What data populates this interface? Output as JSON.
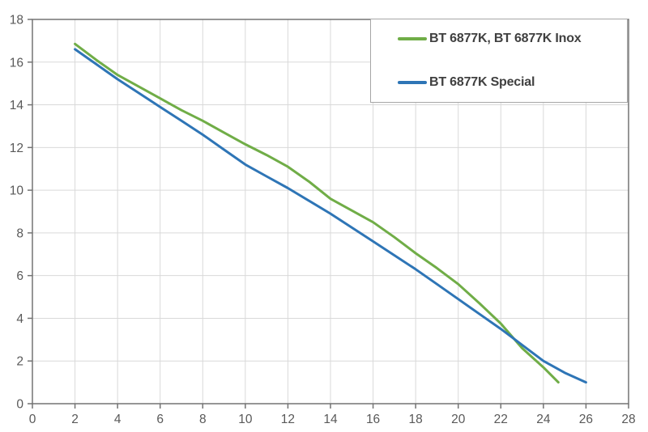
{
  "chart_data": {
    "type": "line",
    "title": "",
    "xlabel": "",
    "ylabel": "",
    "xlim": [
      0,
      28
    ],
    "ylim": [
      0,
      18
    ],
    "x_tick_step": 2,
    "y_tick_step": 2,
    "grid": true,
    "legend_position": "top-right",
    "colors": {
      "axis": "#737373",
      "grid": "#D9D9D9",
      "tick_label": "#595959",
      "legend_border": "#A6A6A6",
      "legend_text": "#404040"
    },
    "series": [
      {
        "name": "BT 6877K, BT 6877K Inox",
        "color": "#70AD47",
        "points": [
          [
            2,
            16.85
          ],
          [
            3,
            16.1
          ],
          [
            4,
            15.4
          ],
          [
            5,
            14.85
          ],
          [
            6,
            14.3
          ],
          [
            7,
            13.75
          ],
          [
            8,
            13.25
          ],
          [
            9,
            12.7
          ],
          [
            10,
            12.15
          ],
          [
            11,
            11.65
          ],
          [
            12,
            11.1
          ],
          [
            13,
            10.4
          ],
          [
            14,
            9.6
          ],
          [
            15,
            9.05
          ],
          [
            16,
            8.5
          ],
          [
            17,
            7.8
          ],
          [
            18,
            7.05
          ],
          [
            19,
            6.35
          ],
          [
            20,
            5.6
          ],
          [
            21,
            4.7
          ],
          [
            22,
            3.75
          ],
          [
            23,
            2.6
          ],
          [
            24,
            1.7
          ],
          [
            24.7,
            1.0
          ]
        ]
      },
      {
        "name": "BT 6877K Special",
        "color": "#2E75B6",
        "points": [
          [
            2,
            16.6
          ],
          [
            3,
            15.9
          ],
          [
            4,
            15.2
          ],
          [
            5,
            14.55
          ],
          [
            6,
            13.9
          ],
          [
            7,
            13.25
          ],
          [
            8,
            12.6
          ],
          [
            9,
            11.9
          ],
          [
            10,
            11.2
          ],
          [
            11,
            10.65
          ],
          [
            12,
            10.1
          ],
          [
            13,
            9.5
          ],
          [
            14,
            8.9
          ],
          [
            15,
            8.25
          ],
          [
            16,
            7.6
          ],
          [
            17,
            6.95
          ],
          [
            18,
            6.3
          ],
          [
            19,
            5.6
          ],
          [
            20,
            4.9
          ],
          [
            21,
            4.2
          ],
          [
            22,
            3.5
          ],
          [
            23,
            2.75
          ],
          [
            24,
            2.0
          ],
          [
            25,
            1.45
          ],
          [
            26,
            1.0
          ]
        ]
      }
    ]
  }
}
